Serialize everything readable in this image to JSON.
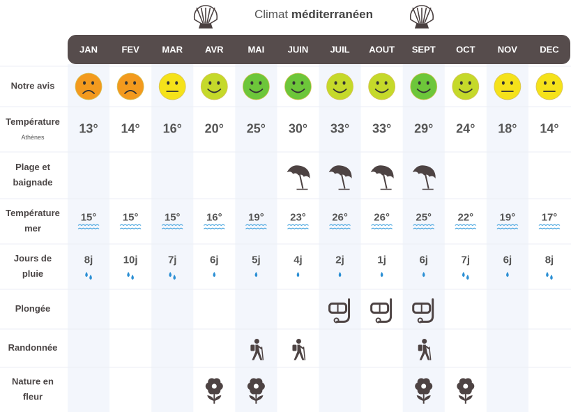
{
  "title": {
    "prefix": "Climat",
    "emphasis": "méditerranéen"
  },
  "months": [
    "JAN",
    "FEV",
    "MAR",
    "AVR",
    "MAI",
    "JUIN",
    "JUIL",
    "AOUT",
    "SEPT",
    "OCT",
    "NOV",
    "DEC"
  ],
  "rows": {
    "avis": {
      "label": [
        "Notre avis"
      ],
      "faces": [
        {
          "color": "#f39a1e",
          "mouth": "frown"
        },
        {
          "color": "#f39a1e",
          "mouth": "frown"
        },
        {
          "color": "#f5e21a",
          "mouth": "flat"
        },
        {
          "color": "#c5d92a",
          "mouth": "smile"
        },
        {
          "color": "#6dc63a",
          "mouth": "smile"
        },
        {
          "color": "#6dc63a",
          "mouth": "smile"
        },
        {
          "color": "#c5d92a",
          "mouth": "smile"
        },
        {
          "color": "#c5d92a",
          "mouth": "smile"
        },
        {
          "color": "#6dc63a",
          "mouth": "smile"
        },
        {
          "color": "#c5d92a",
          "mouth": "smile"
        },
        {
          "color": "#f5e21a",
          "mouth": "flat"
        },
        {
          "color": "#f5e21a",
          "mouth": "flat"
        }
      ]
    },
    "temperature": {
      "label": [
        "Température"
      ],
      "sublabel": "Athènes",
      "values": [
        "13°",
        "14°",
        "16°",
        "20°",
        "25°",
        "30°",
        "33°",
        "33°",
        "29°",
        "24°",
        "18°",
        "14°"
      ]
    },
    "plage": {
      "label": [
        "Plage et",
        "baignade"
      ],
      "active": [
        false,
        false,
        false,
        false,
        false,
        true,
        true,
        true,
        true,
        false,
        false,
        false
      ]
    },
    "mer": {
      "label": [
        "Température",
        "mer"
      ],
      "values": [
        "15°",
        "15°",
        "15°",
        "16°",
        "19°",
        "23°",
        "26°",
        "26°",
        "25°",
        "22°",
        "19°",
        "17°"
      ]
    },
    "pluie": {
      "label": [
        "Jours de",
        "pluie"
      ],
      "values": [
        "8j",
        "10j",
        "7j",
        "6j",
        "5j",
        "4j",
        "2j",
        "1j",
        "6j",
        "7j",
        "6j",
        "8j"
      ],
      "drops": [
        2,
        2,
        2,
        1,
        1,
        1,
        1,
        1,
        1,
        2,
        1,
        2
      ]
    },
    "plongee": {
      "label": [
        "Plongée"
      ],
      "active": [
        false,
        false,
        false,
        false,
        false,
        false,
        true,
        true,
        true,
        false,
        false,
        false
      ]
    },
    "randonnee": {
      "label": [
        "Randonnée"
      ],
      "active": [
        false,
        false,
        false,
        false,
        true,
        true,
        false,
        false,
        true,
        false,
        false,
        false
      ]
    },
    "nature": {
      "label": [
        "Nature en",
        "fleur"
      ],
      "active": [
        false,
        false,
        false,
        true,
        true,
        false,
        false,
        false,
        true,
        true,
        false,
        false
      ]
    }
  }
}
